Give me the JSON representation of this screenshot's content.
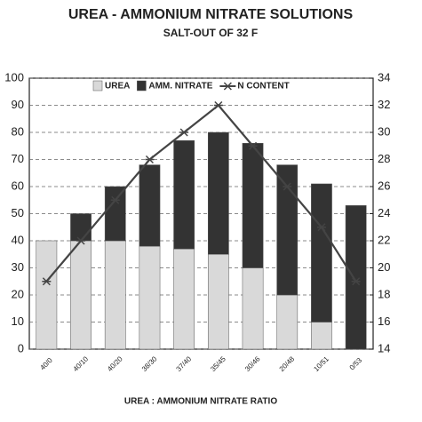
{
  "chart_data": {
    "type": "bar",
    "stacked": true,
    "title": "UREA - AMMONIUM NITRATE SOLUTIONS",
    "subtitle": "SALT-OUT OF 32 F",
    "x_label": "UREA : AMMONIUM NITRATE RATIO",
    "categories": [
      "40/0",
      "40/10",
      "40/20",
      "38/30",
      "37/40",
      "35/45",
      "30/46",
      "20/48",
      "10/51",
      "0/53"
    ],
    "series": [
      {
        "name": "UREA",
        "color": "#d9d9d9",
        "values": [
          40,
          40,
          40,
          38,
          37,
          35,
          30,
          20,
          10,
          0
        ]
      },
      {
        "name": "AMM. NITRATE",
        "color": "#333333",
        "values": [
          0,
          10,
          20,
          30,
          40,
          45,
          46,
          48,
          51,
          53
        ]
      },
      {
        "name": "N CONTENT",
        "color": "#444444",
        "type": "line",
        "axis": "y2",
        "values": [
          19,
          22,
          25,
          28,
          30,
          32,
          29,
          26,
          23,
          19
        ]
      }
    ],
    "ylim": [
      0,
      100
    ],
    "yticks": [
      0,
      10,
      20,
      30,
      40,
      50,
      60,
      70,
      80,
      90,
      100
    ],
    "y2lim": [
      14,
      34
    ],
    "y2ticks": [
      14,
      16,
      18,
      20,
      22,
      24,
      26,
      28,
      30,
      32,
      34
    ],
    "grid": true
  }
}
